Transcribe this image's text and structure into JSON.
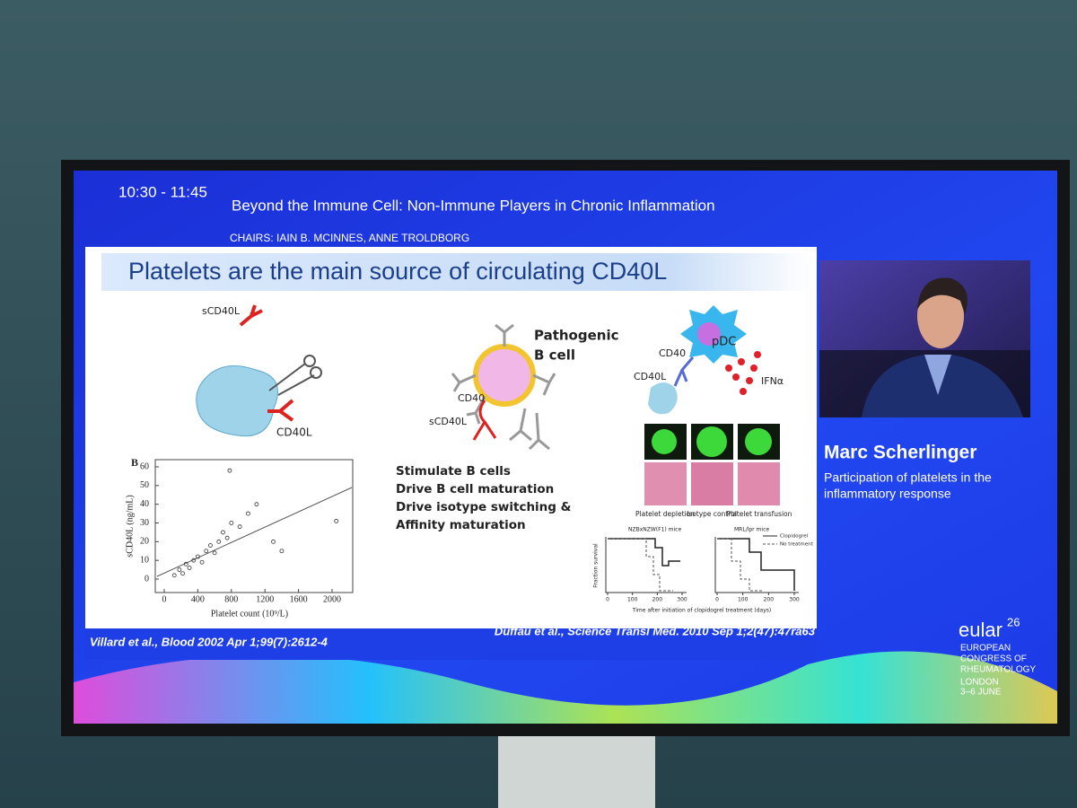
{
  "session": {
    "time": "10:30 - 11:45",
    "title": "Beyond the Immune Cell: Non-Immune Players in Chronic Inflammation",
    "chairs": "CHAIRS: IAIN B. MCINNES, ANNE TROLDBORG"
  },
  "slide": {
    "title": "Platelets are the main source of circulating CD40L",
    "diagram_labels": {
      "scd40l_top": "sCD40L",
      "cd40l_left": "CD40L",
      "pathogenic": "Pathogenic",
      "b_cell": "B cell",
      "cd40_mid": "CD40",
      "scd40l_mid": "sCD40L",
      "pdc": "pDC",
      "cd40_right": "CD40",
      "cd40l_right": "CD40L",
      "ifna": "IFNα"
    },
    "bullets": [
      "Stimulate B cells",
      "Drive B cell maturation",
      "Drive isotype switching &",
      "Affinity maturation"
    ],
    "scatter_plot": {
      "panel": "B",
      "ylabel": "sCD40L (ng/mL)",
      "xlabel": "Platelet count (10⁹/L)",
      "xticks": [
        0,
        400,
        800,
        1200,
        1600,
        2000
      ],
      "yticks": [
        0,
        10,
        20,
        30,
        40,
        50,
        60
      ],
      "points": {
        "x": [
          120,
          180,
          220,
          260,
          300,
          350,
          400,
          450,
          500,
          550,
          600,
          650,
          700,
          750,
          800,
          900,
          1000,
          1100,
          1300,
          1400,
          780,
          2050
        ],
        "y": [
          2,
          5,
          3,
          8,
          6,
          10,
          12,
          9,
          15,
          18,
          14,
          20,
          25,
          22,
          30,
          28,
          35,
          40,
          20,
          15,
          58,
          31
        ]
      }
    },
    "histology_labels": [
      "Platelet depletion",
      "Isotype control",
      "Platelet transfusion"
    ],
    "survival_plots": {
      "titles": [
        "NZBxNZW(F1) mice",
        "MRL/lpr mice"
      ],
      "legend": [
        "Clopidogrel",
        "No treatment"
      ],
      "ylabel": "Fraction survival",
      "xlabel": "Time after initiation of clopidogrel treatment (days)",
      "xticks": [
        0,
        100,
        200,
        300
      ]
    },
    "citations": [
      "Villard et al., Blood 2002 Apr 1;99(7):2612-4",
      "Duffau et al., Science Transl Med. 2010 Sep 1;2(47):47ra63"
    ]
  },
  "speaker": {
    "name": "Marc Scherlinger",
    "talk": [
      "Participation of platelets in the",
      "inflammatory response"
    ]
  },
  "congress": {
    "brand": "eular",
    "edition": "26",
    "lines": [
      "EUROPEAN",
      "CONGRESS OF",
      "RHEUMATOLOGY"
    ],
    "city": "LONDON",
    "dates": "3–6 JUNE"
  }
}
